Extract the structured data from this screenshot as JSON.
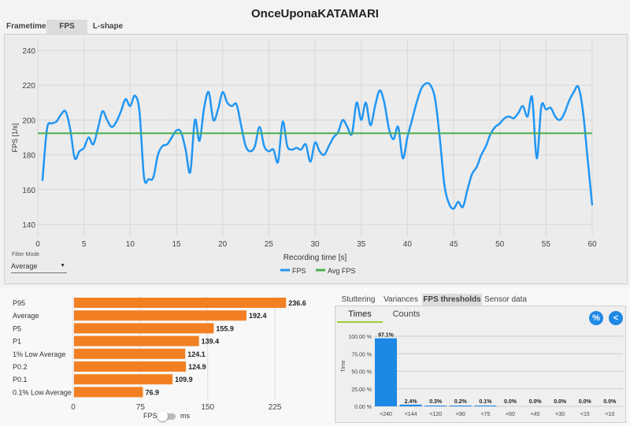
{
  "title": "OnceUponaKATAMARI",
  "tabs": [
    {
      "label": "Frametimes"
    },
    {
      "label": "FPS"
    },
    {
      "label": "L-shape"
    }
  ],
  "filter": {
    "label": "Filter Mode",
    "value": "Average"
  },
  "legend": {
    "fps": "FPS",
    "avg": "Avg FPS"
  },
  "colors": {
    "fps": "#2196f3",
    "avg": "#4caf50",
    "bars": "#f28022",
    "thresh": "#1e88e5"
  },
  "toggle": {
    "left": "FPS",
    "right": "ms",
    "state": "FPS"
  },
  "right_tabs": [
    {
      "label": "Stuttering"
    },
    {
      "label": "Variances"
    },
    {
      "label": "FPS thresholds"
    },
    {
      "label": "Sensor data"
    }
  ],
  "sub_tabs": [
    {
      "label": "Times"
    },
    {
      "label": "Counts"
    }
  ],
  "buttons": {
    "percent": "%",
    "back": "<"
  },
  "chart_data": [
    {
      "type": "line",
      "title": "",
      "xlabel": "Recording time [s]",
      "ylabel": "FPS [1/s]",
      "xlim": [
        0,
        60
      ],
      "ylim": [
        130,
        245
      ],
      "xticks": [
        0,
        5,
        10,
        15,
        20,
        25,
        30,
        35,
        40,
        45,
        50,
        55,
        60
      ],
      "yticks": [
        140,
        160,
        180,
        200,
        220,
        240
      ],
      "series": [
        {
          "name": "FPS",
          "x": [
            0.5,
            1,
            1.5,
            2,
            2.5,
            3,
            3.5,
            4,
            4.5,
            5,
            5.5,
            6,
            6.5,
            7,
            7.5,
            8,
            8.5,
            9,
            9.5,
            10,
            10.5,
            11,
            11.5,
            12,
            12.5,
            13,
            13.5,
            14,
            14.5,
            15,
            15.5,
            16,
            16.5,
            17,
            17.5,
            18,
            18.5,
            19,
            19.5,
            20,
            20.5,
            21,
            21.5,
            22,
            22.5,
            23,
            23.5,
            24,
            24.5,
            25,
            25.5,
            26,
            26.5,
            27,
            27.5,
            28,
            28.5,
            29,
            29.5,
            30,
            30.5,
            31,
            31.5,
            32,
            32.5,
            33,
            33.5,
            34,
            34.5,
            35,
            35.5,
            36,
            36.5,
            37,
            37.5,
            38,
            38.5,
            39,
            39.5,
            40,
            40.5,
            41,
            41.5,
            42,
            42.5,
            43,
            43.5,
            44,
            44.5,
            45,
            45.5,
            46,
            46.5,
            47,
            47.5,
            48,
            48.5,
            49,
            49.5,
            50,
            50.5,
            51,
            51.5,
            52,
            52.5,
            53,
            53.5,
            54,
            54.5,
            55,
            55.5,
            56,
            56.5,
            57,
            57.5,
            58,
            58.5,
            59,
            59.5,
            60
          ],
          "y": [
            165,
            195,
            198,
            199,
            203,
            205,
            195,
            178,
            182,
            184,
            190,
            186,
            195,
            205,
            200,
            196,
            199,
            205,
            212,
            208,
            214,
            205,
            167,
            166,
            167,
            180,
            185,
            186,
            190,
            194,
            193,
            183,
            170,
            200,
            188,
            207,
            216,
            200,
            206,
            216,
            210,
            208,
            209,
            197,
            185,
            182,
            185,
            196,
            185,
            182,
            183,
            176,
            199,
            185,
            183,
            184,
            183,
            186,
            176,
            187,
            182,
            180,
            185,
            190,
            193,
            200,
            196,
            192,
            210,
            200,
            210,
            197,
            208,
            217,
            210,
            195,
            189,
            196,
            178,
            190,
            200,
            210,
            218,
            221,
            220,
            212,
            190,
            163,
            152,
            149,
            153,
            150,
            160,
            169,
            173,
            180,
            185,
            192,
            196,
            198,
            201,
            202,
            201,
            204,
            208,
            202,
            213,
            178,
            208,
            206,
            207,
            202,
            200,
            204,
            211,
            216,
            219,
            205,
            178,
            151
          ]
        },
        {
          "name": "Avg FPS",
          "x": [
            0,
            60
          ],
          "y": [
            192.4,
            192.4
          ]
        }
      ],
      "legend": "bottom-center",
      "grid": true
    },
    {
      "type": "bar",
      "orientation": "horizontal",
      "categories": [
        "P95",
        "Average",
        "P5",
        "P1",
        "1% Low Average",
        "P0.2",
        "P0.1",
        "0.1% Low Average"
      ],
      "values": [
        236.6,
        192.4,
        155.9,
        139.4,
        124.1,
        124.9,
        109.9,
        76.9
      ],
      "labels": [
        "236.6",
        "192.4",
        "155.9",
        "139.4",
        "124.1",
        "124.9",
        "109.9",
        "76.9"
      ],
      "xlim": [
        0,
        250
      ],
      "xticks": [
        0,
        75,
        150,
        225
      ],
      "grid": true
    },
    {
      "type": "bar",
      "categories": [
        "<240",
        "<144",
        "<120",
        "<90",
        "<75",
        "<60",
        "<45",
        "<30",
        "<15",
        "<10"
      ],
      "values": [
        97.1,
        2.4,
        0.3,
        0.2,
        0.1,
        0.0,
        0.0,
        0.0,
        0.0,
        0.0
      ],
      "labels": [
        "97.1%",
        "2.4%",
        "0.3%",
        "0.2%",
        "0.1%",
        "0.0%",
        "0.0%",
        "0.0%",
        "0.0%",
        "0.0%"
      ],
      "ylabel": "Time",
      "ylim": [
        0,
        100
      ],
      "yticks": [
        "0.00 %",
        "25.00 %",
        "50.00 %",
        "75.00 %",
        "100.00 %"
      ],
      "grid": true
    }
  ]
}
